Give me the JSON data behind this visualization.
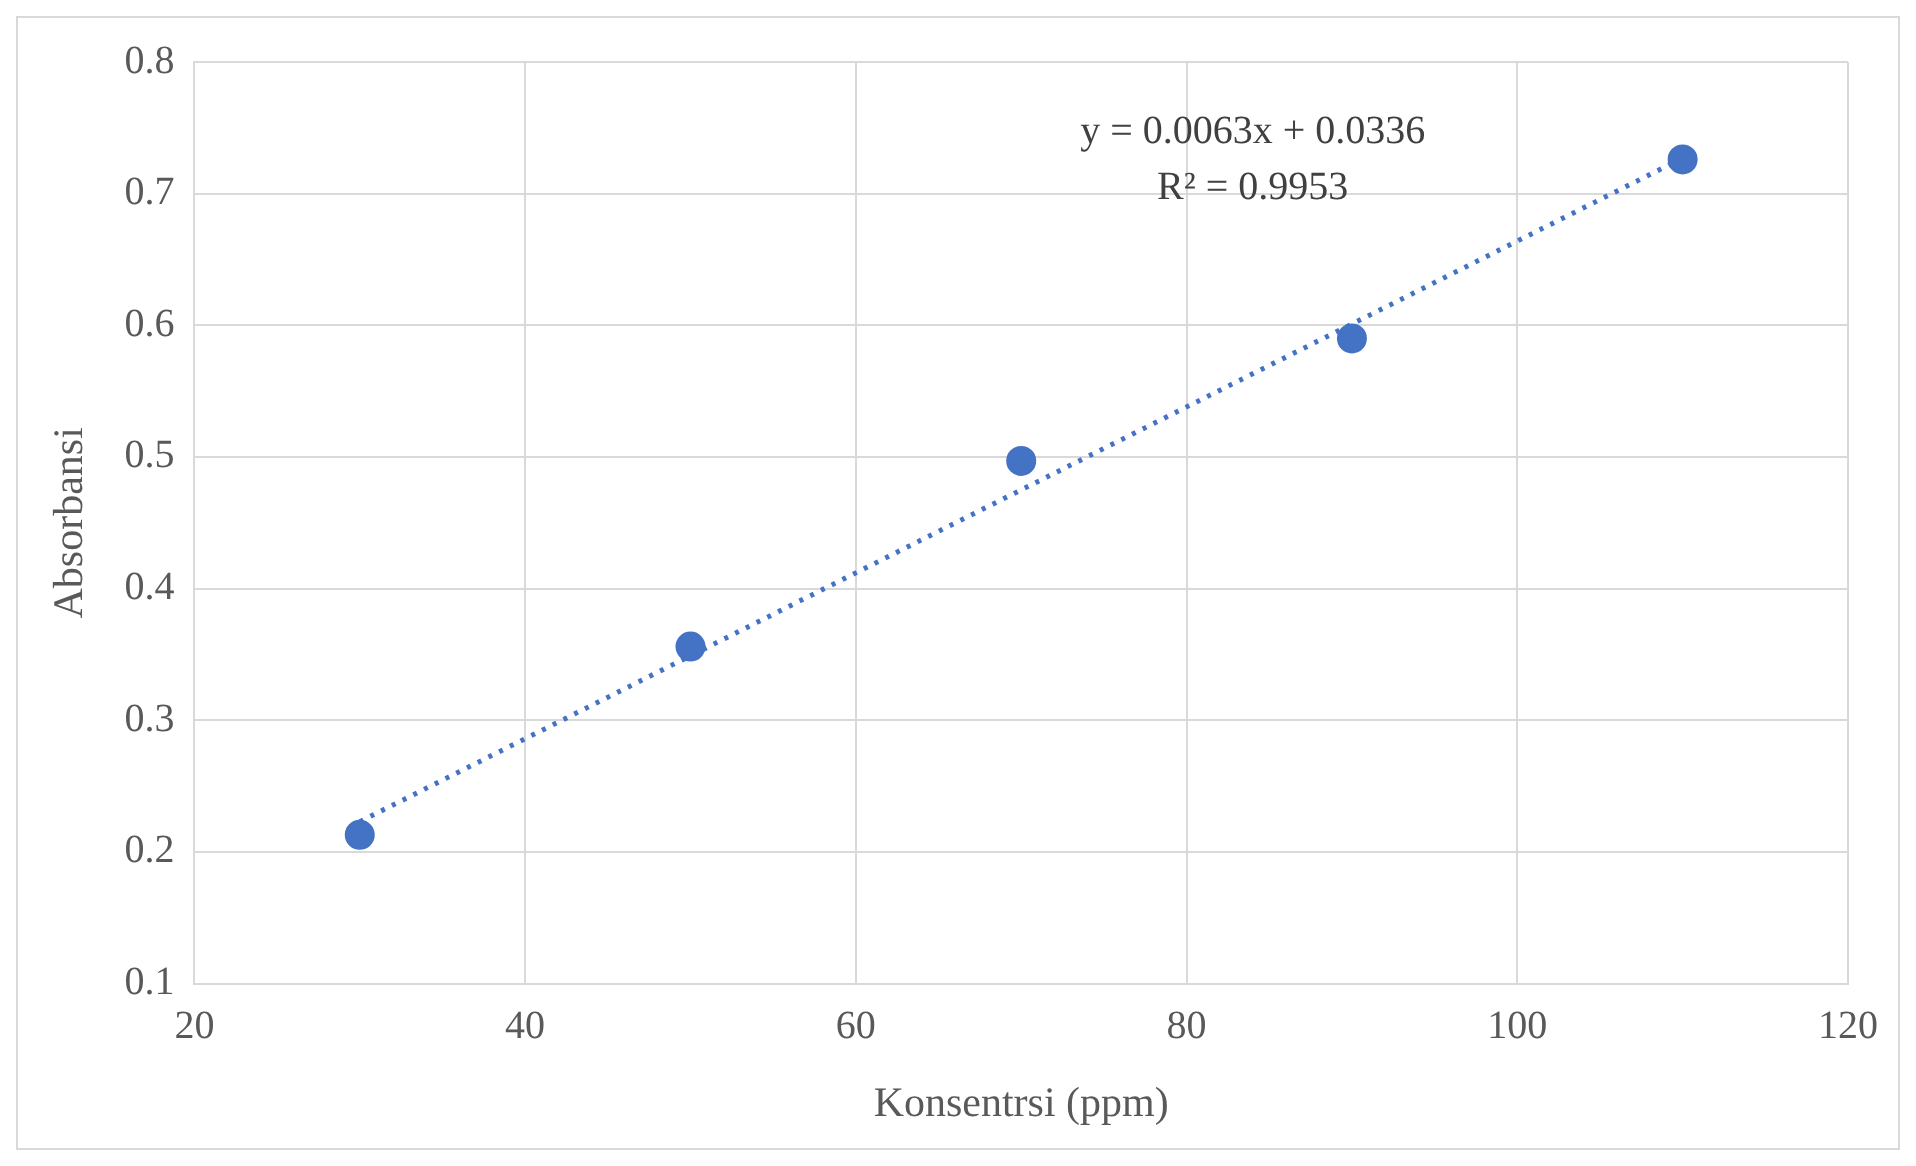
{
  "chart_data": {
    "type": "scatter",
    "xlabel": "Konsentrsi (ppm)",
    "ylabel": "Absorbansi",
    "xlim": [
      20,
      120
    ],
    "xticks": [
      20,
      40,
      60,
      80,
      100,
      120
    ],
    "ylim": [
      0.1,
      0.8
    ],
    "yticks": [
      0.1,
      0.2,
      0.3,
      0.4,
      0.5,
      0.6,
      0.7,
      0.8
    ],
    "grid": true,
    "legend": false,
    "marker": "circle",
    "annotations": [
      "y = 0.0063x + 0.0336",
      "R² = 0.9953"
    ],
    "series": [
      {
        "color": "#4472c4",
        "x": [
          30,
          50,
          70,
          90,
          110
        ],
        "values": [
          0.213,
          0.356,
          0.497,
          0.59,
          0.726
        ]
      },
      {
        "type": "line",
        "color": "#4472c4",
        "line_style": "dotted",
        "marker": "none",
        "x": [
          30,
          110
        ],
        "values": [
          0.223,
          0.727
        ]
      }
    ]
  }
}
